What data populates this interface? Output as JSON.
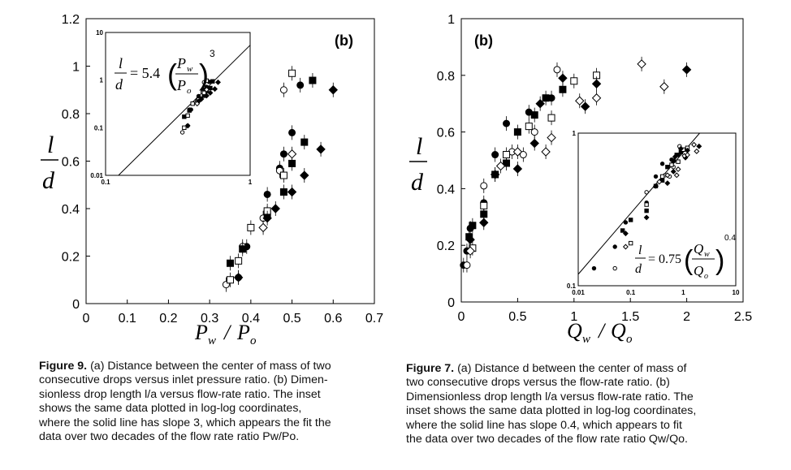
{
  "chart_data": [
    {
      "type": "scatter",
      "panel_label": "(b)",
      "ylabel_num": "l",
      "ylabel_den": "d",
      "xlabel": "P_w / P_o",
      "xlim": [
        0,
        0.7
      ],
      "ylim": [
        0,
        1.2
      ],
      "xticks": [
        "0",
        "0.1",
        "0.2",
        "0.3",
        "0.4",
        "0.5",
        "0.6",
        "0.7"
      ],
      "yticks": [
        "0",
        "0.2",
        "0.4",
        "0.6",
        "0.8",
        "1",
        "1.2"
      ],
      "series": [
        {
          "marker": "filled-circle",
          "points": [
            [
              0.37,
              0.11
            ],
            [
              0.39,
              0.24
            ],
            [
              0.44,
              0.46
            ],
            [
              0.47,
              0.57
            ],
            [
              0.48,
              0.63
            ],
            [
              0.5,
              0.72
            ],
            [
              0.52,
              0.92
            ]
          ]
        },
        {
          "marker": "open-circle",
          "points": [
            [
              0.34,
              0.08
            ],
            [
              0.38,
              0.24
            ],
            [
              0.43,
              0.36
            ],
            [
              0.47,
              0.56
            ],
            [
              0.48,
              0.9
            ]
          ]
        },
        {
          "marker": "filled-square",
          "points": [
            [
              0.35,
              0.17
            ],
            [
              0.38,
              0.23
            ],
            [
              0.44,
              0.38
            ],
            [
              0.48,
              0.47
            ],
            [
              0.5,
              0.59
            ],
            [
              0.53,
              0.68
            ],
            [
              0.55,
              0.94
            ]
          ]
        },
        {
          "marker": "open-square",
          "points": [
            [
              0.35,
              0.1
            ],
            [
              0.37,
              0.18
            ],
            [
              0.4,
              0.32
            ],
            [
              0.44,
              0.39
            ],
            [
              0.48,
              0.54
            ],
            [
              0.5,
              0.97
            ]
          ]
        },
        {
          "marker": "filled-diamond",
          "points": [
            [
              0.37,
              0.11
            ],
            [
              0.44,
              0.36
            ],
            [
              0.46,
              0.4
            ],
            [
              0.5,
              0.47
            ],
            [
              0.53,
              0.54
            ],
            [
              0.57,
              0.65
            ],
            [
              0.6,
              0.9
            ]
          ]
        },
        {
          "marker": "open-diamond",
          "points": [
            [
              0.43,
              0.32
            ],
            [
              0.5,
              0.63
            ]
          ]
        }
      ],
      "inset": {
        "scale": "log-log",
        "xlim": [
          0.1,
          1
        ],
        "ylim": [
          0.01,
          10
        ],
        "xticks": [
          "0.1",
          "1"
        ],
        "yticks": [
          "0.01",
          "0.1",
          "1",
          "10"
        ],
        "equation_lhs": "= 5.4",
        "equation_num": "P_w",
        "equation_den": "P_o",
        "equation_exp": "3",
        "fit": {
          "coefficient": 5.4,
          "exponent": 3
        }
      }
    },
    {
      "type": "scatter",
      "panel_label": "(b)",
      "ylabel_num": "l",
      "ylabel_den": "d",
      "xlabel": "Q_w / Q_o",
      "xlim": [
        0,
        2.5
      ],
      "ylim": [
        0,
        1
      ],
      "xticks": [
        "0",
        "0.5",
        "1",
        "1.5",
        "2",
        "2.5"
      ],
      "yticks": [
        "0",
        "0.2",
        "0.4",
        "0.6",
        "0.8",
        "1"
      ],
      "series": [
        {
          "marker": "filled-circle",
          "points": [
            [
              0.02,
              0.13
            ],
            [
              0.05,
              0.18
            ],
            [
              0.08,
              0.26
            ],
            [
              0.2,
              0.35
            ],
            [
              0.3,
              0.52
            ],
            [
              0.4,
              0.63
            ],
            [
              0.6,
              0.67
            ],
            [
              0.8,
              0.72
            ]
          ]
        },
        {
          "marker": "open-circle",
          "points": [
            [
              0.05,
              0.13
            ],
            [
              0.2,
              0.41
            ],
            [
              0.45,
              0.53
            ],
            [
              0.55,
              0.52
            ],
            [
              0.65,
              0.6
            ],
            [
              0.85,
              0.82
            ]
          ]
        },
        {
          "marker": "filled-square",
          "points": [
            [
              0.07,
              0.23
            ],
            [
              0.1,
              0.27
            ],
            [
              0.2,
              0.31
            ],
            [
              0.3,
              0.45
            ],
            [
              0.4,
              0.49
            ],
            [
              0.5,
              0.6
            ],
            [
              0.65,
              0.66
            ],
            [
              0.75,
              0.72
            ],
            [
              0.9,
              0.75
            ]
          ]
        },
        {
          "marker": "open-square",
          "points": [
            [
              0.1,
              0.19
            ],
            [
              0.2,
              0.34
            ],
            [
              0.4,
              0.52
            ],
            [
              0.6,
              0.62
            ],
            [
              0.8,
              0.65
            ],
            [
              1.0,
              0.78
            ],
            [
              1.2,
              0.8
            ]
          ]
        },
        {
          "marker": "filled-diamond",
          "points": [
            [
              0.08,
              0.22
            ],
            [
              0.2,
              0.28
            ],
            [
              0.3,
              0.45
            ],
            [
              0.5,
              0.47
            ],
            [
              0.65,
              0.56
            ],
            [
              0.7,
              0.7
            ],
            [
              0.9,
              0.79
            ],
            [
              1.1,
              0.69
            ],
            [
              1.2,
              0.77
            ],
            [
              2.0,
              0.82
            ]
          ]
        },
        {
          "marker": "open-diamond",
          "points": [
            [
              0.08,
              0.18
            ],
            [
              0.35,
              0.48
            ],
            [
              0.5,
              0.53
            ],
            [
              0.75,
              0.53
            ],
            [
              0.8,
              0.58
            ],
            [
              1.05,
              0.71
            ],
            [
              1.2,
              0.72
            ],
            [
              1.6,
              0.84
            ],
            [
              1.8,
              0.76
            ]
          ]
        }
      ],
      "inset": {
        "scale": "log-log",
        "xlim": [
          0.01,
          10
        ],
        "ylim": [
          0.1,
          1
        ],
        "xticks": [
          "0.01",
          "0.1",
          "1",
          "10"
        ],
        "yticks": [
          "0.1",
          "1"
        ],
        "equation_lhs": "= 0.75",
        "equation_num": "Q_w",
        "equation_den": "Q_o",
        "equation_exp": "0.4",
        "fit": {
          "coefficient": 0.75,
          "exponent": 0.4
        }
      }
    }
  ],
  "captions": [
    {
      "label": "Figure 9.",
      "lines": [
        " (a) Distance between the center of mass of two",
        "consecutive drops versus inlet pressure ratio. (b) Dimen-",
        "sionless drop length l/a versus flow-rate ratio. The inset",
        "shows the same data plotted in log-log coordinates,",
        "where the solid line has slope 3, which appears the fit the",
        "data over two decades of the flow rate ratio Pw/Po."
      ]
    },
    {
      "label": "Figure 7.",
      "lines": [
        " (a) Distance d between the center of mass of",
        "two consecutive drops versus the flow-rate ratio. (b)",
        "Dimensionless drop length l/a versus flow-rate ratio. The",
        "inset shows the same data plotted in log-log coordinates,",
        "where the solid line has slope 0.4, which appears to fit",
        "the data over two decades of the flow rate ratio Qw/Qo."
      ]
    }
  ]
}
